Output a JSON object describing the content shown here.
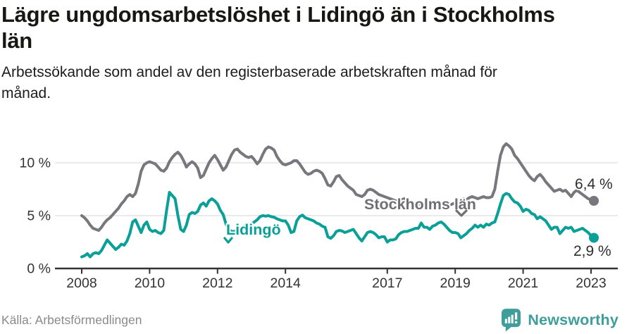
{
  "header": {
    "title": "Lägre ungdomsarbetslöshet i Lidingö än i Stockholms\nlän",
    "subtitle": "Arbetssökande som andel av den registerbaserade arbetskraften månad för\nmånad."
  },
  "footer": {
    "source": "Källa: Arbetsförmedlingen",
    "brand": "Newsworthy"
  },
  "colors": {
    "stockholm_line": "#77777d",
    "lidingo_line": "#0a9f97",
    "stockholm_label": "#6e6e74",
    "value_label": "#2e2e2e",
    "gridline": "#e3e3e3",
    "axis": "#333333",
    "brand_teal": "#3f9e99"
  },
  "chart_data": {
    "type": "line",
    "title": "Lägre ungdomsarbetslöshet i Lidingö än i Stockholms län",
    "subtitle": "Arbetssökande som andel av den registerbaserade arbetskraften månad för månad.",
    "source": "Källa: Arbetsförmedlingen",
    "unit": "%",
    "frequency": "monthly",
    "x_start": "2008-01",
    "x_end": "2023-02",
    "ylim": [
      0,
      12.5
    ],
    "grid": "horizontal",
    "legend_position": "inline-labels",
    "x_tick_years": [
      2008,
      2010,
      2012,
      2014,
      2017,
      2019,
      2021,
      2023
    ],
    "x_tick_labels": [
      "2008",
      "2010",
      "2012",
      "2014",
      "2017",
      "2019",
      "2021",
      "2023"
    ],
    "y_ticks": [
      {
        "value": 0,
        "label": "0 %"
      },
      {
        "value": 5,
        "label": "5 %"
      },
      {
        "value": 10,
        "label": "10 %"
      }
    ],
    "series": [
      {
        "name": "Stockholms län",
        "color": "#77777d",
        "end_label": "6,4 %",
        "end_value": 6.4,
        "values": [
          5.0,
          4.8,
          4.5,
          4.1,
          3.8,
          3.7,
          3.6,
          3.9,
          4.3,
          4.6,
          4.8,
          5.1,
          5.4,
          5.7,
          6.1,
          6.4,
          6.8,
          7.0,
          6.8,
          7.1,
          8.0,
          9.2,
          9.8,
          10.0,
          10.1,
          10.0,
          9.9,
          9.6,
          9.3,
          9.2,
          9.5,
          10.1,
          10.5,
          10.8,
          11.0,
          10.7,
          10.2,
          9.6,
          9.9,
          10.1,
          9.9,
          9.5,
          8.6,
          8.8,
          9.4,
          10.0,
          10.4,
          10.7,
          10.3,
          9.8,
          9.3,
          9.6,
          10.2,
          10.8,
          11.2,
          11.3,
          11.0,
          10.8,
          10.6,
          10.5,
          10.6,
          10.3,
          9.9,
          10.2,
          10.8,
          11.3,
          11.5,
          11.4,
          11.2,
          10.6,
          10.2,
          9.9,
          9.8,
          9.9,
          10.0,
          10.2,
          10.2,
          9.9,
          9.5,
          9.1,
          8.9,
          9.0,
          9.2,
          9.3,
          9.2,
          9.0,
          8.5,
          7.9,
          7.8,
          8.2,
          8.7,
          8.8,
          8.4,
          8.1,
          7.8,
          7.6,
          7.4,
          7.0,
          6.9,
          6.8,
          7.0,
          7.4,
          7.5,
          7.4,
          7.2,
          7.0,
          6.9,
          6.8,
          6.7,
          6.6,
          6.5,
          6.4,
          6.3,
          6.5,
          6.6,
          6.4,
          6.3,
          6.2,
          6.2,
          6.1,
          6.1,
          6.0,
          5.9,
          5.9,
          5.8,
          6.0,
          6.1,
          6.0,
          5.9,
          5.9,
          6.0,
          6.1,
          6.2,
          6.4,
          6.5,
          6.6,
          6.5,
          6.7,
          6.8,
          6.7,
          6.6,
          6.7,
          6.8,
          6.7,
          6.7,
          6.8,
          7.5,
          9.2,
          10.7,
          11.5,
          11.8,
          11.6,
          11.3,
          10.7,
          10.4,
          10.0,
          9.6,
          9.2,
          8.8,
          8.5,
          8.3,
          8.7,
          8.9,
          8.6,
          8.2,
          7.9,
          7.6,
          7.3,
          7.4,
          7.5,
          7.3,
          7.4,
          7.1,
          6.8,
          7.2,
          7.4,
          7.2,
          7.0,
          6.8,
          6.6,
          6.5,
          6.4
        ]
      },
      {
        "name": "Lidingö",
        "color": "#0a9f97",
        "end_label": "2,9 %",
        "end_value": 2.9,
        "values": [
          1.1,
          1.2,
          1.4,
          1.1,
          1.4,
          1.5,
          1.4,
          1.7,
          2.2,
          2.7,
          2.4,
          2.1,
          1.8,
          2.0,
          2.3,
          2.2,
          2.6,
          3.3,
          4.4,
          4.6,
          4.0,
          3.4,
          4.1,
          4.4,
          3.7,
          3.5,
          3.6,
          3.4,
          3.3,
          3.6,
          5.5,
          7.2,
          6.9,
          6.6,
          5.0,
          3.7,
          3.5,
          4.1,
          5.1,
          5.3,
          5.2,
          5.4,
          6.0,
          6.2,
          5.9,
          6.4,
          6.6,
          6.4,
          6.1,
          5.5,
          5.1,
          4.2,
          3.7,
          3.5,
          3.5,
          3.6,
          3.8,
          3.9,
          4.1,
          4.0,
          4.2,
          4.4,
          4.6,
          4.9,
          5.0,
          4.95,
          5.0,
          4.9,
          4.85,
          4.7,
          4.6,
          4.5,
          4.5,
          4.1,
          3.4,
          3.5,
          4.5,
          4.9,
          5.05,
          4.8,
          4.7,
          4.6,
          4.5,
          4.3,
          4.2,
          4.0,
          3.9,
          3.0,
          2.85,
          3.1,
          3.5,
          3.6,
          3.55,
          3.4,
          3.5,
          3.6,
          3.7,
          3.3,
          2.9,
          2.6,
          3.0,
          3.4,
          3.5,
          3.4,
          3.2,
          2.9,
          3.0,
          3.0,
          2.5,
          2.7,
          2.7,
          2.8,
          3.2,
          3.4,
          3.5,
          3.5,
          3.6,
          3.7,
          3.8,
          3.8,
          4.3,
          3.9,
          3.9,
          3.7,
          4.0,
          4.1,
          4.3,
          4.4,
          4.2,
          3.9,
          3.6,
          3.4,
          3.4,
          3.3,
          2.9,
          3.1,
          3.3,
          3.6,
          3.8,
          4.1,
          3.9,
          4.1,
          3.9,
          4.2,
          4.1,
          4.3,
          4.4,
          5.2,
          6.1,
          6.9,
          7.1,
          7.0,
          6.6,
          6.3,
          6.2,
          5.9,
          5.4,
          5.6,
          5.5,
          5.2,
          5.1,
          4.7,
          4.9,
          4.7,
          4.5,
          4.1,
          3.7,
          3.9,
          3.9,
          3.3,
          3.6,
          3.9,
          3.8,
          3.9,
          3.5,
          3.6,
          3.7,
          3.8,
          3.6,
          3.4,
          3.1,
          2.9
        ]
      }
    ]
  }
}
